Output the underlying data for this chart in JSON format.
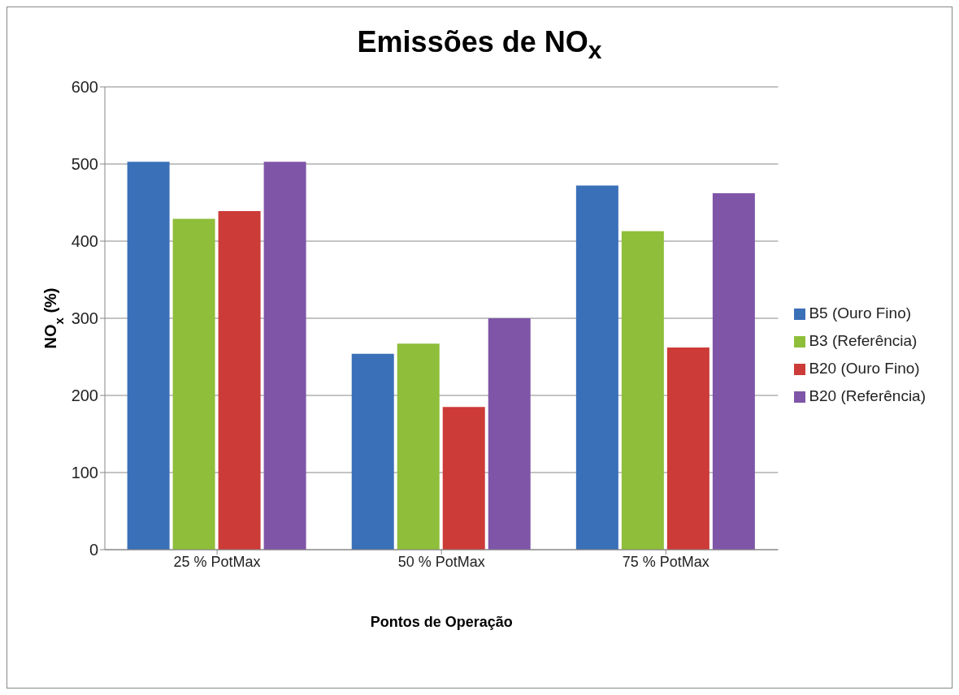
{
  "chart_data": {
    "type": "bar",
    "title": "Emissões de NO$_{x}$",
    "xlabel": "Pontos de Operação",
    "ylabel": "NO$_{x}$ (%)",
    "categories": [
      "25 % PotMax",
      "50 % PotMax",
      "75 % PotMax"
    ],
    "series": [
      {
        "name": "B5 (Ouro Fino)",
        "color": "#3a70b8",
        "values": [
          503,
          254,
          472
        ]
      },
      {
        "name": "B3 (Referência)",
        "color": "#8fbe3a",
        "values": [
          429,
          267,
          413
        ]
      },
      {
        "name": "B20 (Ouro Fino)",
        "color": "#cc3b37",
        "values": [
          439,
          185,
          262
        ]
      },
      {
        "name": "B20 (Referência)",
        "color": "#7f55a8",
        "values": [
          503,
          300,
          462
        ]
      }
    ],
    "ylim": [
      0,
      600
    ],
    "yticks": [
      0,
      100,
      200,
      300,
      400,
      500,
      600
    ],
    "grid": "y",
    "legend": "right"
  }
}
